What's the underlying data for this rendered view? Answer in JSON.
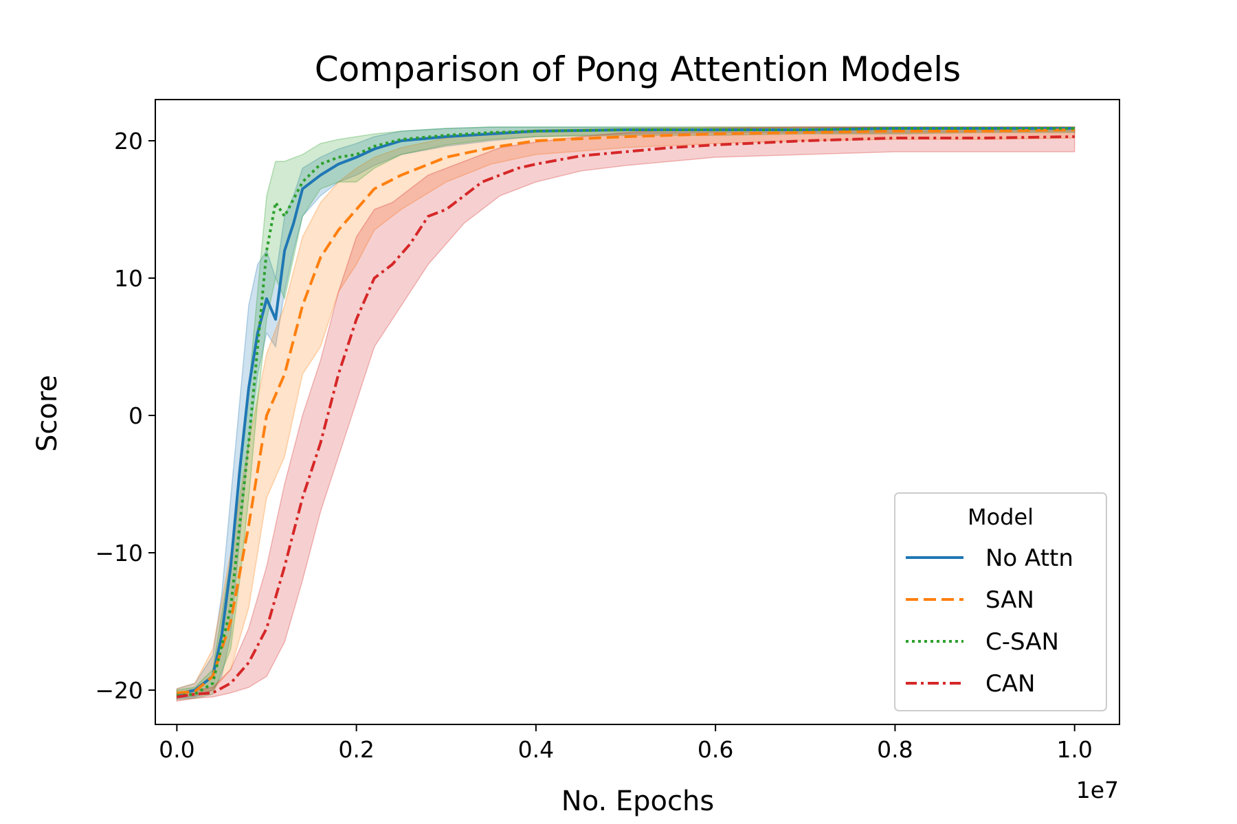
{
  "chart_data": {
    "type": "line",
    "title": "Comparison of Pong Attention Models",
    "xlabel": "No. Epochs",
    "ylabel": "Score",
    "x_offset_label": "1e7",
    "xlim": [
      -0.024,
      1.05
    ],
    "ylim": [
      -22.5,
      23
    ],
    "x_ticks": [
      0.0,
      0.2,
      0.4,
      0.6,
      0.8,
      1.0
    ],
    "x_tick_labels": [
      "0.0",
      "0.2",
      "0.4",
      "0.6",
      "0.8",
      "1.0"
    ],
    "y_ticks": [
      -20,
      -10,
      0,
      10,
      20
    ],
    "y_tick_labels": [
      "−20",
      "−10",
      "0",
      "10",
      "20"
    ],
    "grid": false,
    "legend": {
      "title": "Model",
      "position": "lower-right"
    },
    "series": [
      {
        "name": "No Attn",
        "color": "#1f77b4",
        "dash": "solid",
        "x": [
          0.0,
          0.02,
          0.04,
          0.05,
          0.06,
          0.07,
          0.08,
          0.09,
          0.1,
          0.11,
          0.12,
          0.13,
          0.14,
          0.16,
          0.18,
          0.2,
          0.22,
          0.25,
          0.3,
          0.35,
          0.4,
          0.5,
          0.6,
          0.7,
          0.8,
          0.9,
          1.0
        ],
        "y": [
          -20.3,
          -20.0,
          -19.0,
          -16.0,
          -11.0,
          -4.0,
          2.0,
          6.0,
          8.5,
          7.0,
          12.0,
          14.0,
          16.5,
          17.5,
          18.3,
          18.8,
          19.4,
          20.0,
          20.3,
          20.5,
          20.7,
          20.8,
          20.8,
          20.8,
          20.9,
          20.9,
          20.9
        ],
        "lower": [
          -20.6,
          -20.5,
          -20.0,
          -19.0,
          -16.0,
          -9.0,
          -2.0,
          3.0,
          6.0,
          5.0,
          9.0,
          12.0,
          14.5,
          16.0,
          17.0,
          17.5,
          18.2,
          19.0,
          19.6,
          20.0,
          20.3,
          20.5,
          20.6,
          20.6,
          20.6,
          20.7,
          20.7
        ],
        "upper": [
          -19.9,
          -19.5,
          -17.5,
          -13.0,
          -6.0,
          1.0,
          8.0,
          11.0,
          12.0,
          10.0,
          14.5,
          16.0,
          18.0,
          18.8,
          19.4,
          19.8,
          20.3,
          20.7,
          20.9,
          21.0,
          21.0,
          21.0,
          21.0,
          21.0,
          21.0,
          21.0,
          21.0
        ]
      },
      {
        "name": "SAN",
        "color": "#ff7f0e",
        "dash": "dashed",
        "x": [
          0.0,
          0.02,
          0.04,
          0.06,
          0.08,
          0.1,
          0.12,
          0.14,
          0.16,
          0.18,
          0.2,
          0.22,
          0.25,
          0.3,
          0.35,
          0.4,
          0.5,
          0.6,
          0.7,
          0.8,
          0.9,
          1.0
        ],
        "y": [
          -20.2,
          -20.1,
          -19.0,
          -15.0,
          -8.0,
          0.0,
          3.0,
          8.0,
          11.5,
          13.5,
          15.0,
          16.5,
          17.5,
          18.8,
          19.5,
          20.0,
          20.3,
          20.5,
          20.6,
          20.7,
          20.7,
          20.8
        ],
        "lower": [
          -20.5,
          -20.4,
          -20.0,
          -18.5,
          -14.0,
          -6.0,
          -3.0,
          3.0,
          5.0,
          9.0,
          11.0,
          13.5,
          15.0,
          17.0,
          18.3,
          19.0,
          19.5,
          19.8,
          20.0,
          20.1,
          20.1,
          20.2
        ],
        "upper": [
          -19.9,
          -19.5,
          -17.0,
          -10.0,
          -2.0,
          4.5,
          8.0,
          13.0,
          15.5,
          17.0,
          18.0,
          18.8,
          19.5,
          20.2,
          20.6,
          20.8,
          20.9,
          21.0,
          21.0,
          21.0,
          21.0,
          21.0
        ]
      },
      {
        "name": "C-SAN",
        "color": "#2ca02c",
        "dash": "dotted",
        "x": [
          0.0,
          0.02,
          0.04,
          0.06,
          0.07,
          0.08,
          0.09,
          0.1,
          0.11,
          0.12,
          0.14,
          0.16,
          0.18,
          0.2,
          0.22,
          0.25,
          0.3,
          0.35,
          0.4,
          0.5,
          0.6,
          0.7,
          0.8,
          0.9,
          1.0
        ],
        "y": [
          -20.4,
          -20.3,
          -19.5,
          -14.0,
          -8.0,
          -2.0,
          5.0,
          12.0,
          15.5,
          14.5,
          17.0,
          18.3,
          18.8,
          19.0,
          19.6,
          20.1,
          20.4,
          20.6,
          20.7,
          20.8,
          20.8,
          20.8,
          20.9,
          20.9,
          20.9
        ],
        "lower": [
          -20.7,
          -20.6,
          -20.3,
          -17.0,
          -12.0,
          -6.0,
          1.0,
          7.0,
          10.0,
          8.5,
          14.5,
          16.5,
          17.0,
          17.0,
          18.0,
          19.0,
          19.7,
          20.1,
          20.3,
          20.4,
          20.4,
          20.5,
          20.5,
          20.6,
          20.6
        ],
        "upper": [
          -20.0,
          -19.8,
          -18.5,
          -10.5,
          -4.0,
          2.0,
          9.0,
          16.0,
          18.5,
          18.5,
          19.0,
          19.8,
          20.1,
          20.3,
          20.5,
          20.7,
          20.9,
          21.0,
          21.0,
          21.0,
          21.0,
          21.0,
          21.0,
          21.0,
          21.0
        ]
      },
      {
        "name": "CAN",
        "color": "#d62728",
        "dash": "dashdot",
        "x": [
          0.0,
          0.02,
          0.04,
          0.06,
          0.08,
          0.1,
          0.12,
          0.14,
          0.16,
          0.18,
          0.2,
          0.22,
          0.24,
          0.26,
          0.28,
          0.3,
          0.32,
          0.34,
          0.36,
          0.38,
          0.4,
          0.45,
          0.5,
          0.55,
          0.6,
          0.7,
          0.8,
          0.9,
          1.0
        ],
        "y": [
          -20.5,
          -20.3,
          -20.2,
          -19.5,
          -18.0,
          -15.5,
          -11.0,
          -6.0,
          -2.0,
          3.0,
          7.0,
          10.0,
          11.0,
          12.5,
          14.5,
          15.0,
          16.0,
          17.0,
          17.5,
          18.0,
          18.3,
          18.9,
          19.2,
          19.5,
          19.7,
          20.0,
          20.2,
          20.2,
          20.3
        ],
        "lower": [
          -20.8,
          -20.6,
          -20.5,
          -20.2,
          -19.8,
          -19.0,
          -16.5,
          -12.0,
          -7.0,
          -3.0,
          1.0,
          5.0,
          7.0,
          9.0,
          11.0,
          12.5,
          14.0,
          15.0,
          16.0,
          16.5,
          17.0,
          17.8,
          18.2,
          18.5,
          18.8,
          19.0,
          19.2,
          19.2,
          19.2
        ],
        "upper": [
          -20.2,
          -20.0,
          -19.8,
          -18.5,
          -15.5,
          -11.0,
          -5.0,
          0.0,
          4.0,
          9.0,
          13.0,
          15.0,
          15.5,
          16.5,
          17.5,
          18.0,
          18.5,
          19.0,
          19.5,
          19.7,
          19.9,
          20.3,
          20.6,
          20.8,
          20.9,
          21.0,
          21.0,
          21.0,
          21.0
        ]
      }
    ]
  }
}
